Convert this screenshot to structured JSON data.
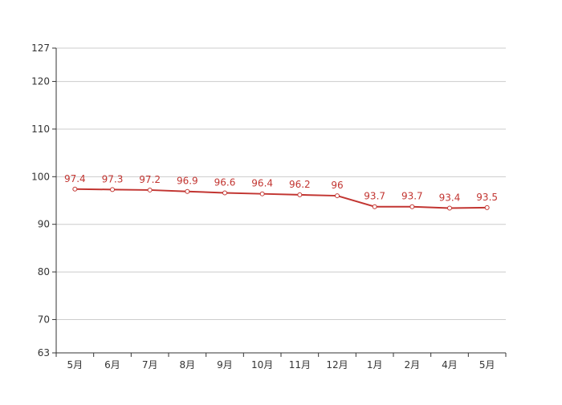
{
  "chart_data": {
    "type": "line",
    "title": "",
    "xlabel": "",
    "ylabel": "",
    "categories": [
      "5月",
      "6月",
      "7月",
      "8月",
      "9月",
      "10月",
      "11月",
      "12月",
      "1月",
      "2月",
      "4月",
      "5月"
    ],
    "series": [
      {
        "values": [
          97.4,
          97.3,
          97.2,
          96.9,
          96.6,
          96.4,
          96.2,
          96,
          93.7,
          93.7,
          93.4,
          93.5
        ],
        "labels": [
          "97.4",
          "97.3",
          "97.2",
          "96.9",
          "96.6",
          "96.4",
          "96.2",
          "96",
          "93.7",
          "93.7",
          "93.4",
          "93.5"
        ],
        "color": "#c23531"
      }
    ],
    "ylim": [
      63,
      127
    ],
    "yticks": [
      63,
      70,
      80,
      90,
      100,
      110,
      120,
      127
    ],
    "ytick_labels": [
      "63",
      "70",
      "80",
      "90",
      "100",
      "110",
      "120",
      "127"
    ],
    "grid": true,
    "legend": "none",
    "colors": {
      "grid": "#cccccc",
      "axis": "#333333",
      "line": "#c23531",
      "label": "#c23531"
    }
  }
}
